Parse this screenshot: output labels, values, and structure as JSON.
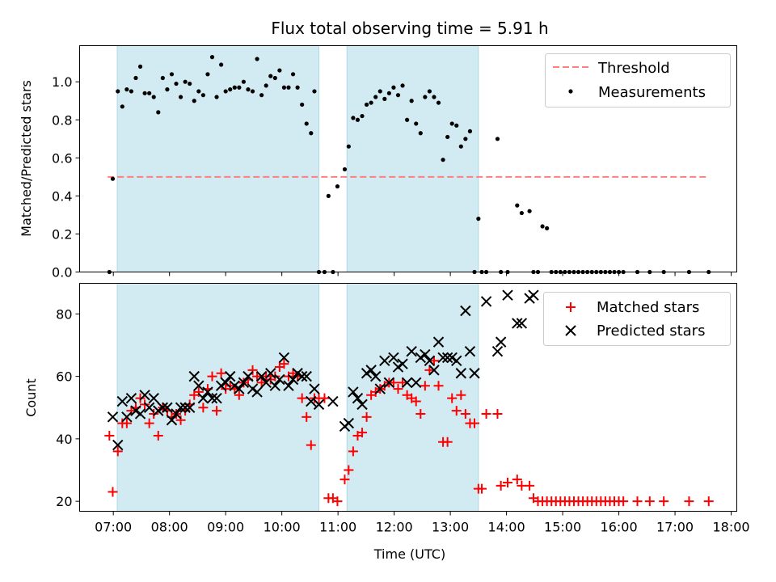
{
  "figure": {
    "title": "Flux total observing time = 5.91 h"
  },
  "chart_data": [
    {
      "type": "scatter",
      "ylabel": "Matched/Predicted stars",
      "xlabel": "",
      "xlim": [
        6.4,
        18.1
      ],
      "ylim": [
        0.0,
        1.19
      ],
      "yticks": [
        0.0,
        0.2,
        0.4,
        0.6,
        0.8,
        1.0
      ],
      "ytick_labels": [
        "0.0",
        "0.2",
        "0.4",
        "0.6",
        "0.8",
        "1.0"
      ],
      "grid": false,
      "legend_position": "top-right",
      "shaded_spans": [
        [
          7.07,
          10.66
        ],
        [
          11.16,
          13.5
        ]
      ],
      "shade_color": "#add8e6",
      "threshold": {
        "name": "Threshold",
        "value": 0.5,
        "x_range": [
          6.9,
          17.6
        ],
        "color": "#ff7f7f"
      },
      "series": [
        {
          "name": "Measurements",
          "color": "#000000",
          "x": [
            6.93,
            6.99,
            7.08,
            7.16,
            7.24,
            7.32,
            7.4,
            7.48,
            7.56,
            7.64,
            7.72,
            7.8,
            7.88,
            7.96,
            8.04,
            8.12,
            8.2,
            8.28,
            8.36,
            8.44,
            8.52,
            8.6,
            8.68,
            8.76,
            8.84,
            8.92,
            9.0,
            9.08,
            9.16,
            9.24,
            9.32,
            9.4,
            9.48,
            9.56,
            9.64,
            9.72,
            9.8,
            9.88,
            9.96,
            10.04,
            10.12,
            10.2,
            10.28,
            10.36,
            10.44,
            10.52,
            10.58,
            10.66,
            10.76,
            10.83,
            10.91,
            10.99,
            11.12,
            11.19,
            11.27,
            11.35,
            11.43,
            11.51,
            11.59,
            11.67,
            11.75,
            11.83,
            11.91,
            11.99,
            12.07,
            12.15,
            12.23,
            12.31,
            12.39,
            12.47,
            12.55,
            12.63,
            12.71,
            12.79,
            12.87,
            12.95,
            13.03,
            13.11,
            13.19,
            13.27,
            13.35,
            13.43,
            13.5,
            13.56,
            13.64,
            13.84,
            13.9,
            14.02,
            14.19,
            14.27,
            14.41,
            14.48,
            14.56,
            14.64,
            14.72,
            14.8,
            14.88,
            14.96,
            15.04,
            15.12,
            15.2,
            15.28,
            15.36,
            15.44,
            15.52,
            15.6,
            15.68,
            15.76,
            15.84,
            15.92,
            16.0,
            16.08,
            16.33,
            16.55,
            16.8,
            17.25,
            17.6
          ],
          "y": [
            0.0,
            0.49,
            0.95,
            0.87,
            0.96,
            0.95,
            1.02,
            1.08,
            0.94,
            0.94,
            0.92,
            0.84,
            1.02,
            0.96,
            1.04,
            0.99,
            0.92,
            1.0,
            0.99,
            0.9,
            0.95,
            0.93,
            1.04,
            1.13,
            0.92,
            1.09,
            0.95,
            0.96,
            0.97,
            0.97,
            1.0,
            0.96,
            0.95,
            1.12,
            0.93,
            0.98,
            1.03,
            1.02,
            1.06,
            0.97,
            0.97,
            1.04,
            0.97,
            0.88,
            0.78,
            0.73,
            0.95,
            0.0,
            0.0,
            0.4,
            0.0,
            0.45,
            0.54,
            0.66,
            0.81,
            0.8,
            0.82,
            0.88,
            0.89,
            0.92,
            0.95,
            0.91,
            0.94,
            0.97,
            0.93,
            0.98,
            0.8,
            0.9,
            0.78,
            0.73,
            0.92,
            0.95,
            0.92,
            0.89,
            0.59,
            0.71,
            0.78,
            0.77,
            0.66,
            0.7,
            0.74,
            0.0,
            0.28,
            0.0,
            0.0,
            0.7,
            0.0,
            0.0,
            0.35,
            0.31,
            0.32,
            0.0,
            0.0,
            0.24,
            0.23,
            0.0,
            0.0,
            0.0,
            0.0,
            0.0,
            0.0,
            0.0,
            0.0,
            0.0,
            0.0,
            0.0,
            0.0,
            0.0,
            0.0,
            0.0,
            0.0,
            0.0,
            0.0,
            0.0,
            0.0,
            0.0,
            0.0
          ]
        }
      ]
    },
    {
      "type": "scatter",
      "ylabel": "Count",
      "xlabel": "Time (UTC)",
      "xlim": [
        6.4,
        18.1
      ],
      "ylim": [
        16.8,
        89.8
      ],
      "yticks": [
        20,
        40,
        60,
        80
      ],
      "ytick_labels": [
        "20",
        "40",
        "60",
        "80"
      ],
      "xticks": [
        7,
        8,
        9,
        10,
        11,
        12,
        13,
        14,
        15,
        16,
        17,
        18
      ],
      "xtick_labels": [
        "07:00",
        "08:00",
        "09:00",
        "10:00",
        "11:00",
        "12:00",
        "13:00",
        "14:00",
        "15:00",
        "16:00",
        "17:00",
        "18:00"
      ],
      "grid": false,
      "legend_position": "top-right",
      "shaded_spans": [
        [
          7.07,
          10.66
        ],
        [
          11.16,
          13.5
        ]
      ],
      "shade_color": "#add8e6",
      "series": [
        {
          "name": "Matched stars",
          "marker": "plus",
          "color": "#ff0000",
          "x": [
            6.93,
            6.99,
            7.08,
            7.16,
            7.24,
            7.32,
            7.4,
            7.48,
            7.56,
            7.64,
            7.72,
            7.8,
            7.88,
            7.96,
            8.04,
            8.12,
            8.2,
            8.28,
            8.36,
            8.44,
            8.52,
            8.6,
            8.68,
            8.76,
            8.84,
            8.92,
            9.0,
            9.08,
            9.16,
            9.24,
            9.32,
            9.4,
            9.48,
            9.56,
            9.64,
            9.72,
            9.8,
            9.88,
            9.96,
            10.04,
            10.12,
            10.2,
            10.28,
            10.36,
            10.44,
            10.52,
            10.58,
            10.66,
            10.76,
            10.83,
            10.91,
            10.99,
            11.12,
            11.19,
            11.27,
            11.35,
            11.43,
            11.51,
            11.59,
            11.67,
            11.75,
            11.83,
            11.91,
            11.99,
            12.07,
            12.15,
            12.23,
            12.31,
            12.39,
            12.47,
            12.55,
            12.63,
            12.71,
            12.79,
            12.87,
            12.95,
            13.03,
            13.11,
            13.19,
            13.27,
            13.35,
            13.43,
            13.5,
            13.56,
            13.64,
            13.84,
            13.9,
            14.02,
            14.19,
            14.27,
            14.41,
            14.48,
            14.56,
            14.64,
            14.72,
            14.8,
            14.88,
            14.96,
            15.04,
            15.12,
            15.2,
            15.28,
            15.36,
            15.44,
            15.52,
            15.6,
            15.68,
            15.76,
            15.84,
            15.92,
            16.0,
            16.08,
            16.33,
            16.55,
            16.8,
            17.25,
            17.6
          ],
          "y": [
            41,
            23,
            36,
            45,
            45,
            49,
            50,
            53,
            51,
            45,
            48,
            41,
            50,
            49,
            47,
            48,
            46,
            49,
            51,
            54,
            55,
            50,
            56,
            60,
            49,
            61,
            56,
            57,
            56,
            54,
            58,
            59,
            62,
            60,
            58,
            60,
            59,
            60,
            63,
            64,
            60,
            61,
            60,
            53,
            47,
            38,
            53,
            53,
            53,
            21,
            21,
            20,
            27,
            30,
            36,
            41,
            42,
            47,
            54,
            55,
            56,
            57,
            58,
            58,
            56,
            58,
            54,
            53,
            52,
            48,
            57,
            62,
            65,
            57,
            39,
            39,
            53,
            49,
            54,
            48,
            45,
            45,
            24,
            24,
            48,
            48,
            25,
            26,
            27,
            25,
            25,
            21,
            20,
            20,
            20,
            20,
            20,
            20,
            20,
            20,
            20,
            20,
            20,
            20,
            20,
            20,
            20,
            20,
            20,
            20,
            20,
            20,
            20,
            20,
            20,
            20,
            20
          ]
        },
        {
          "name": "Predicted stars",
          "marker": "x",
          "color": "#000000",
          "x": [
            6.99,
            7.08,
            7.16,
            7.24,
            7.32,
            7.4,
            7.48,
            7.56,
            7.64,
            7.72,
            7.8,
            7.88,
            7.96,
            8.04,
            8.12,
            8.2,
            8.28,
            8.36,
            8.44,
            8.52,
            8.6,
            8.68,
            8.76,
            8.84,
            8.92,
            9.0,
            9.08,
            9.16,
            9.24,
            9.32,
            9.4,
            9.48,
            9.56,
            9.64,
            9.72,
            9.8,
            9.88,
            9.96,
            10.04,
            10.12,
            10.2,
            10.28,
            10.36,
            10.44,
            10.52,
            10.58,
            10.66,
            10.91,
            11.12,
            11.19,
            11.27,
            11.35,
            11.43,
            11.51,
            11.59,
            11.67,
            11.75,
            11.83,
            11.91,
            11.99,
            12.07,
            12.15,
            12.23,
            12.31,
            12.39,
            12.47,
            12.55,
            12.63,
            12.71,
            12.79,
            12.87,
            12.95,
            13.03,
            13.11,
            13.19,
            13.27,
            13.35,
            13.43,
            13.64,
            13.84,
            13.9,
            14.02,
            14.19,
            14.27,
            14.41,
            14.48
          ],
          "y": [
            47,
            38,
            52,
            47,
            53,
            49,
            48,
            54,
            50,
            53,
            49,
            50,
            50,
            46,
            48,
            50,
            50,
            50,
            60,
            57,
            53,
            55,
            53,
            53,
            57,
            58,
            60,
            57,
            56,
            58,
            60,
            56,
            55,
            60,
            58,
            61,
            57,
            59,
            66,
            57,
            59,
            61,
            60,
            60,
            52,
            56,
            51,
            52,
            44,
            45,
            55,
            53,
            51,
            61,
            62,
            60,
            56,
            65,
            58,
            66,
            63,
            64,
            58,
            68,
            58,
            66,
            67,
            65,
            62,
            71,
            66,
            66,
            66,
            65,
            61,
            81,
            68,
            61,
            84,
            68,
            71,
            86,
            77,
            77,
            85,
            86
          ]
        }
      ]
    }
  ]
}
